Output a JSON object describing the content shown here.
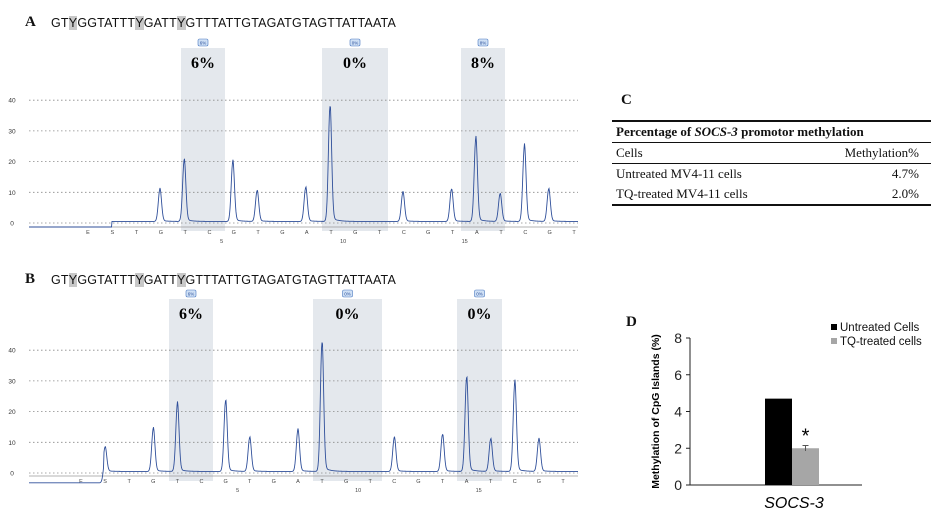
{
  "panelA": {
    "letter": "A",
    "sequence": [
      {
        "t": "GT",
        "hl": false
      },
      {
        "t": "Y",
        "hl": true
      },
      {
        "t": "GGTATTT",
        "hl": false
      },
      {
        "t": "Y",
        "hl": true
      },
      {
        "t": "GATT",
        "hl": false
      },
      {
        "t": "Y",
        "hl": true
      },
      {
        "t": "GTTTATTGTAGATGTAGTTATTAATA",
        "hl": false
      }
    ],
    "badges": [
      "6%",
      "0%",
      "8%"
    ],
    "percentages": [
      "6%",
      "0%",
      "8%"
    ]
  },
  "panelB": {
    "letter": "B",
    "sequence": [
      {
        "t": "GT",
        "hl": false
      },
      {
        "t": "Y",
        "hl": true
      },
      {
        "t": "GGTATTT",
        "hl": false
      },
      {
        "t": "Y",
        "hl": true
      },
      {
        "t": "GATT",
        "hl": false
      },
      {
        "t": "Y",
        "hl": true
      },
      {
        "t": "GTTTATTGTAGATGTAGTTATTAATA",
        "hl": false
      }
    ],
    "badges": [
      "6%",
      "0%",
      "0%"
    ],
    "percentages": [
      "6%",
      "0%",
      "0%"
    ]
  },
  "pyro_axis": {
    "yticks": [
      0,
      10,
      20,
      30,
      40
    ],
    "dispensation": [
      "E",
      "S",
      "T",
      "G",
      "T",
      "C",
      "G",
      "T",
      "G",
      "A",
      "T",
      "G",
      "T",
      "C",
      "G",
      "T",
      "A",
      "T",
      "C",
      "G",
      "T",
      "A"
    ],
    "position_ticks": [
      "5",
      "10",
      "15"
    ]
  },
  "panelC": {
    "letter": "C",
    "title_prefix": "Percentage of ",
    "title_gene": "SOCS-3",
    "title_suffix": " promotor methylation",
    "col1": "Cells",
    "col2": "Methylation%",
    "rows": [
      {
        "cells": "Untreated MV4-11 cells",
        "value": "4.7%"
      },
      {
        "cells": "TQ-treated MV4-11 cells",
        "value": "2.0%"
      }
    ]
  },
  "panelD": {
    "letter": "D",
    "significance": "*"
  },
  "chart_data": [
    {
      "panel": "A",
      "type": "line",
      "description_free": true,
      "ylim": [
        -2,
        45
      ],
      "yticks": [
        0,
        10,
        20,
        30,
        40
      ],
      "peaks": [
        {
          "x": "G",
          "y": 10.5
        },
        {
          "x": "T",
          "y": 20
        },
        {
          "x": "G",
          "y": 19.5
        },
        {
          "x": "T",
          "y": 10
        },
        {
          "x": "A",
          "y": 11
        },
        {
          "x": "T",
          "y": 37.5
        },
        {
          "x": "G",
          "y": 9.5
        },
        {
          "x": "A",
          "y": 10.5
        },
        {
          "x": "T",
          "y": 27
        },
        {
          "x": "G",
          "y": 9
        },
        {
          "x": "T",
          "y": 24.5
        },
        {
          "x": "A",
          "y": 10.5
        }
      ],
      "methylation_percent": [
        6,
        0,
        8
      ]
    },
    {
      "panel": "B",
      "type": "line",
      "ylim": [
        -2,
        45
      ],
      "yticks": [
        0,
        10,
        20,
        30,
        40
      ],
      "peaks": [
        {
          "x": "S",
          "y": 8
        },
        {
          "x": "G",
          "y": 14
        },
        {
          "x": "T",
          "y": 22
        },
        {
          "x": "G",
          "y": 23
        },
        {
          "x": "T",
          "y": 11
        },
        {
          "x": "A",
          "y": 13.5
        },
        {
          "x": "T",
          "y": 42
        },
        {
          "x": "G",
          "y": 11
        },
        {
          "x": "A",
          "y": 12
        },
        {
          "x": "T",
          "y": 30.5
        },
        {
          "x": "G",
          "y": 10.5
        },
        {
          "x": "T",
          "y": 29
        },
        {
          "x": "A",
          "y": 10.5
        }
      ],
      "methylation_percent": [
        6,
        0,
        0
      ]
    },
    {
      "panel": "D",
      "type": "bar",
      "categories": [
        "SOCS-3"
      ],
      "series": [
        {
          "name": "Untreated Cells",
          "values": [
            4.7
          ],
          "color": "#000000"
        },
        {
          "name": "TQ-treated cells",
          "values": [
            2.0
          ],
          "error": [
            0.15
          ],
          "color": "#a6a6a6"
        }
      ],
      "xlabel": "SOCS-3",
      "ylabel": "Methylation of CpG Islands (%)",
      "ylim": [
        0,
        8
      ],
      "yticks": [
        0,
        2,
        4,
        6,
        8
      ],
      "legend": "top-right"
    }
  ]
}
